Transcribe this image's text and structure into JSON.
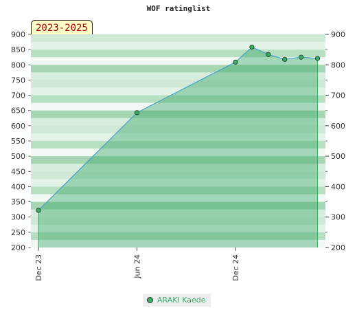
{
  "chart_data": {
    "type": "area",
    "title": "WOF ratinglist",
    "range_label": "2023-2025",
    "y_ticks": [
      200,
      250,
      300,
      350,
      400,
      450,
      500,
      550,
      600,
      650,
      700,
      750,
      800,
      850,
      900
    ],
    "y_ticks_right": [
      200,
      300,
      400,
      500,
      600,
      700,
      800,
      900
    ],
    "ylim": [
      200,
      900
    ],
    "x_ticks": [
      "Dec 23",
      "Jun 24",
      "Dec 24"
    ],
    "series": [
      {
        "name": "ARAKI Kaede",
        "color": "#3aa868",
        "points": [
          {
            "x": "Dec 23",
            "y": 322
          },
          {
            "x": "Jun 24",
            "y": 643
          },
          {
            "x": "Dec 24",
            "y": 809
          },
          {
            "x": "Jan 25",
            "y": 858
          },
          {
            "x": "Feb 25",
            "y": 834
          },
          {
            "x": "Mar 25",
            "y": 818
          },
          {
            "x": "Apr 25",
            "y": 825
          },
          {
            "x": "May 25",
            "y": 821
          }
        ]
      }
    ],
    "grid": true,
    "legend_position": "bottom"
  }
}
